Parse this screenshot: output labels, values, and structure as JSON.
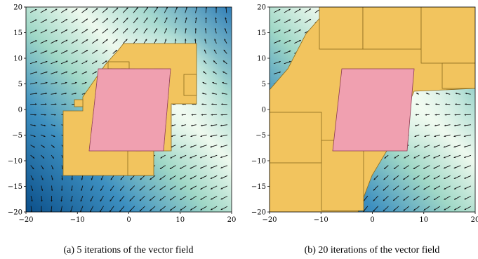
{
  "figure": {
    "panels": [
      {
        "caption": "(a) 5 iterations of the vector field",
        "xticks": [
          "−20",
          "−10",
          "0",
          "10",
          "20"
        ],
        "yticks": [
          "20",
          "15",
          "10",
          "5",
          "0",
          "−5",
          "−10",
          "−15",
          "−20"
        ]
      },
      {
        "caption": "(b) 20 iterations of the vector field",
        "xticks": [
          "−20",
          "−10",
          "0",
          "10",
          "20"
        ],
        "yticks": [
          "20",
          "15",
          "10",
          "5",
          "0",
          "−5",
          "−10",
          "−15",
          "−20"
        ]
      }
    ]
  },
  "chart_data": [
    {
      "type": "heatmap",
      "title": "",
      "xlabel": "",
      "ylabel": "",
      "xlim": [
        -20,
        20
      ],
      "ylim": [
        -20,
        20
      ],
      "grid": false,
      "colormap": [
        "#0b4f8a",
        "#4a9cc8",
        "#a8d8c8",
        "#f2fbf2"
      ],
      "overlays": {
        "vector_field": "quiver arrows on a regular grid",
        "initial_set_color": "#f0a0b0",
        "reachable_set_color": "#f2c45e",
        "initial_set_corners": [
          [
            -7.5,
            8
          ],
          [
            8,
            8
          ],
          [
            6.5,
            -8
          ],
          [
            -8,
            -8
          ]
        ],
        "reachable_set_extent": {
          "x": [
            -13,
            13
          ],
          "y": [
            -13,
            13
          ]
        }
      }
    },
    {
      "type": "heatmap",
      "title": "",
      "xlabel": "",
      "ylabel": "",
      "xlim": [
        -20,
        20
      ],
      "ylim": [
        -20,
        20
      ],
      "grid": false,
      "colormap": [
        "#0b4f8a",
        "#4a9cc8",
        "#a8d8c8",
        "#f2fbf2"
      ],
      "overlays": {
        "vector_field": "quiver arrows on a regular grid",
        "initial_set_color": "#f0a0b0",
        "reachable_set_color": "#f2c45e",
        "initial_set_corners": [
          [
            -7.5,
            8
          ],
          [
            8,
            8
          ],
          [
            6.5,
            -8
          ],
          [
            -8,
            -8
          ]
        ],
        "reachable_set_extent": {
          "x": [
            -20,
            20
          ],
          "y": [
            -20,
            20
          ]
        }
      }
    }
  ]
}
